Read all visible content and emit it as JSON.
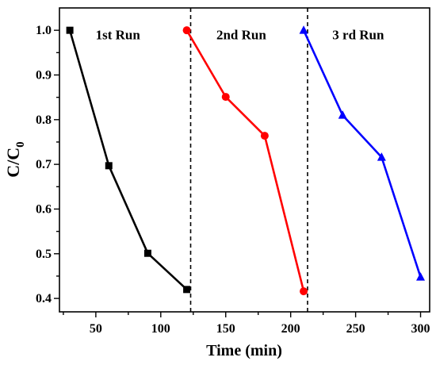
{
  "chart_data": {
    "type": "line",
    "title": "",
    "xlabel": "Time (min)",
    "ylabel": "C/C",
    "ylabel_subscript": "0",
    "xlim": [
      22,
      307
    ],
    "ylim": [
      0.37,
      1.05
    ],
    "xticks": [
      50,
      100,
      150,
      200,
      250,
      300
    ],
    "yticks": [
      0.4,
      0.5,
      0.6,
      0.7,
      0.8,
      0.9,
      1.0
    ],
    "ytick_labels": [
      "0.4",
      "0.5",
      "0.6",
      "0.7",
      "0.8",
      "0.9",
      "1.0"
    ],
    "grid": false,
    "legend": "none",
    "dividers_x": [
      123,
      213
    ],
    "series": [
      {
        "x": [
          30,
          60,
          90,
          120
        ],
        "y": [
          1.0,
          0.697,
          0.501,
          0.42
        ],
        "color": "#000000",
        "marker": "square"
      },
      {
        "x": [
          120,
          150,
          180,
          210
        ],
        "y": [
          1.0,
          0.851,
          0.764,
          0.416
        ],
        "color": "#ff0000",
        "marker": "circle"
      },
      {
        "x": [
          210,
          240,
          270,
          300
        ],
        "y": [
          1.0,
          0.81,
          0.716,
          0.448
        ],
        "color": "#0000ff",
        "marker": "triangle"
      }
    ],
    "annotations": [
      {
        "text": "1st Run",
        "x": 67,
        "y": 0.98
      },
      {
        "text": "2nd Run",
        "x": 162,
        "y": 0.98
      },
      {
        "text": "3 rd Run",
        "x": 252,
        "y": 0.98
      }
    ]
  }
}
